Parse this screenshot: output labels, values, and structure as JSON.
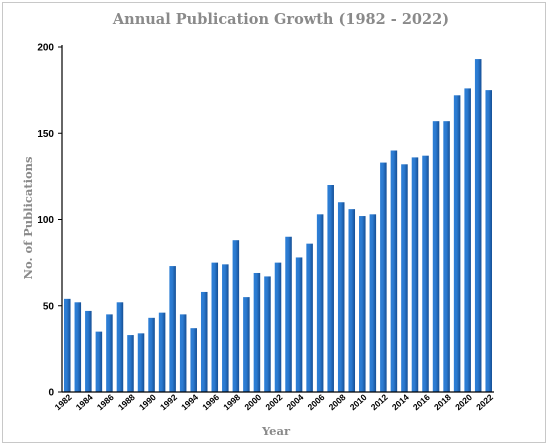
{
  "chart_data": {
    "type": "bar",
    "title": "Annual Publication Growth (1982 - 2022)",
    "xlabel": "Year",
    "ylabel": "No. of Publications",
    "ylim": [
      0,
      200
    ],
    "yticks": [
      "0",
      "50",
      "100",
      "150",
      "200"
    ],
    "grid": false,
    "legend": "none",
    "bar_color": "#1f6fc6",
    "categories": [
      "1982",
      "1983",
      "1984",
      "1985",
      "1986",
      "1987",
      "1988",
      "1989",
      "1990",
      "1991",
      "1992",
      "1993",
      "1994",
      "1995",
      "1996",
      "1997",
      "1998",
      "1999",
      "2000",
      "2001",
      "2002",
      "2003",
      "2004",
      "2005",
      "2006",
      "2007",
      "2008",
      "2009",
      "2010",
      "2011",
      "2012",
      "2013",
      "2014",
      "2015",
      "2016",
      "2017",
      "2018",
      "2019",
      "2020",
      "2021",
      "2022"
    ],
    "values": [
      54,
      52,
      47,
      35,
      45,
      52,
      33,
      34,
      43,
      46,
      73,
      45,
      37,
      58,
      75,
      74,
      88,
      55,
      69,
      67,
      75,
      90,
      78,
      86,
      103,
      120,
      110,
      106,
      102,
      103,
      133,
      140,
      132,
      136,
      137,
      157,
      157,
      172,
      176,
      193,
      175
    ],
    "xtick_labels": [
      "1982",
      "1984",
      "1986",
      "1988",
      "1990",
      "1992",
      "1994",
      "1996",
      "1998",
      "2000",
      "2002",
      "2004",
      "2006",
      "2008",
      "2010",
      "2012",
      "2014",
      "2016",
      "2018",
      "2020",
      "2022"
    ]
  }
}
